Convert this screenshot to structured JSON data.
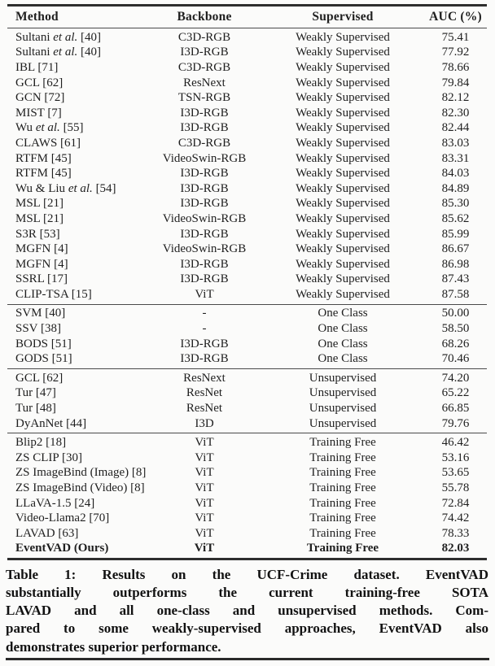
{
  "page": {
    "background": "#fbfbfa",
    "text_color": "#1f1f1f",
    "rule_color": "#2e2e2e"
  },
  "table": {
    "headers": [
      "Method",
      "Backbone",
      "Supervised",
      "AUC (%)"
    ],
    "sections": [
      {
        "group": "Weakly Supervised",
        "rows": [
          {
            "method": "Sultani |et al.| [40]",
            "backbone": "C3D-RGB",
            "supervised": "Weakly Supervised",
            "auc": "75.41"
          },
          {
            "method": "Sultani |et al.| [40]",
            "backbone": "I3D-RGB",
            "supervised": "Weakly Supervised",
            "auc": "77.92"
          },
          {
            "method": "IBL [71]",
            "backbone": "C3D-RGB",
            "supervised": "Weakly Supervised",
            "auc": "78.66"
          },
          {
            "method": "GCL [62]",
            "backbone": "ResNext",
            "supervised": "Weakly Supervised",
            "auc": "79.84"
          },
          {
            "method": "GCN [72]",
            "backbone": "TSN-RGB",
            "supervised": "Weakly Supervised",
            "auc": "82.12"
          },
          {
            "method": "MIST [7]",
            "backbone": "I3D-RGB",
            "supervised": "Weakly Supervised",
            "auc": "82.30"
          },
          {
            "method": "Wu |et al.| [55]",
            "backbone": "I3D-RGB",
            "supervised": "Weakly Supervised",
            "auc": "82.44"
          },
          {
            "method": "CLAWS [61]",
            "backbone": "C3D-RGB",
            "supervised": "Weakly Supervised",
            "auc": "83.03"
          },
          {
            "method": "RTFM [45]",
            "backbone": "VideoSwin-RGB",
            "supervised": "Weakly Supervised",
            "auc": "83.31"
          },
          {
            "method": "RTFM [45]",
            "backbone": "I3D-RGB",
            "supervised": "Weakly Supervised",
            "auc": "84.03"
          },
          {
            "method": "Wu & Liu |et al.| [54]",
            "backbone": "I3D-RGB",
            "supervised": "Weakly Supervised",
            "auc": "84.89"
          },
          {
            "method": "MSL [21]",
            "backbone": "I3D-RGB",
            "supervised": "Weakly Supervised",
            "auc": "85.30"
          },
          {
            "method": "MSL [21]",
            "backbone": "VideoSwin-RGB",
            "supervised": "Weakly Supervised",
            "auc": "85.62"
          },
          {
            "method": "S3R [53]",
            "backbone": "I3D-RGB",
            "supervised": "Weakly Supervised",
            "auc": "85.99"
          },
          {
            "method": "MGFN [4]",
            "backbone": "VideoSwin-RGB",
            "supervised": "Weakly Supervised",
            "auc": "86.67"
          },
          {
            "method": "MGFN [4]",
            "backbone": "I3D-RGB",
            "supervised": "Weakly Supervised",
            "auc": "86.98"
          },
          {
            "method": "SSRL [17]",
            "backbone": "I3D-RGB",
            "supervised": "Weakly Supervised",
            "auc": "87.43"
          },
          {
            "method": "CLIP-TSA [15]",
            "backbone": "ViT",
            "supervised": "Weakly Supervised",
            "auc": "87.58"
          }
        ]
      },
      {
        "group": "One Class",
        "rows": [
          {
            "method": "SVM [40]",
            "backbone": "-",
            "supervised": "One Class",
            "auc": "50.00"
          },
          {
            "method": "SSV [38]",
            "backbone": "-",
            "supervised": "One Class",
            "auc": "58.50"
          },
          {
            "method": "BODS [51]",
            "backbone": "I3D-RGB",
            "supervised": "One Class",
            "auc": "68.26"
          },
          {
            "method": "GODS [51]",
            "backbone": "I3D-RGB",
            "supervised": "One Class",
            "auc": "70.46"
          }
        ]
      },
      {
        "group": "Unsupervised",
        "rows": [
          {
            "method": "GCL [62]",
            "backbone": "ResNext",
            "supervised": "Unsupervised",
            "auc": "74.20"
          },
          {
            "method": "Tur [47]",
            "backbone": "ResNet",
            "supervised": "Unsupervised",
            "auc": "65.22"
          },
          {
            "method": "Tur [48]",
            "backbone": "ResNet",
            "supervised": "Unsupervised",
            "auc": "66.85"
          },
          {
            "method": "DyAnNet [44]",
            "backbone": "I3D",
            "supervised": "Unsupervised",
            "auc": "79.76"
          }
        ]
      },
      {
        "group": "Training Free",
        "rows": [
          {
            "method": "Blip2 [18]",
            "backbone": "ViT",
            "supervised": "Training Free",
            "auc": "46.42"
          },
          {
            "method": "ZS CLIP [30]",
            "backbone": "ViT",
            "supervised": "Training Free",
            "auc": "53.16"
          },
          {
            "method": "ZS ImageBind (Image) [8]",
            "backbone": "ViT",
            "supervised": "Training Free",
            "auc": "53.65"
          },
          {
            "method": "ZS ImageBind (Video) [8]",
            "backbone": "ViT",
            "supervised": "Training Free",
            "auc": "55.78"
          },
          {
            "method": "LLaVA-1.5 [24]",
            "backbone": "ViT",
            "supervised": "Training Free",
            "auc": "72.84"
          },
          {
            "method": "Video-Llama2 [70]",
            "backbone": "ViT",
            "supervised": "Training Free",
            "auc": "74.42"
          },
          {
            "method": "LAVAD [63]",
            "backbone": "ViT",
            "supervised": "Training Free",
            "auc": "78.33"
          },
          {
            "method": "EventVAD (Ours)",
            "backbone": "ViT",
            "supervised": "Training Free",
            "auc": "82.03",
            "bold": true
          }
        ]
      }
    ]
  },
  "caption": {
    "lines": [
      "Table 1: Results on the UCF-Crime dataset. EventVAD",
      "substantially outperforms the current training-free SOTA",
      "LAVAD and all one-class and unsupervised methods. Com-",
      "pared to some weakly-supervised approaches, EventVAD also",
      "demonstrates superior performance."
    ]
  }
}
